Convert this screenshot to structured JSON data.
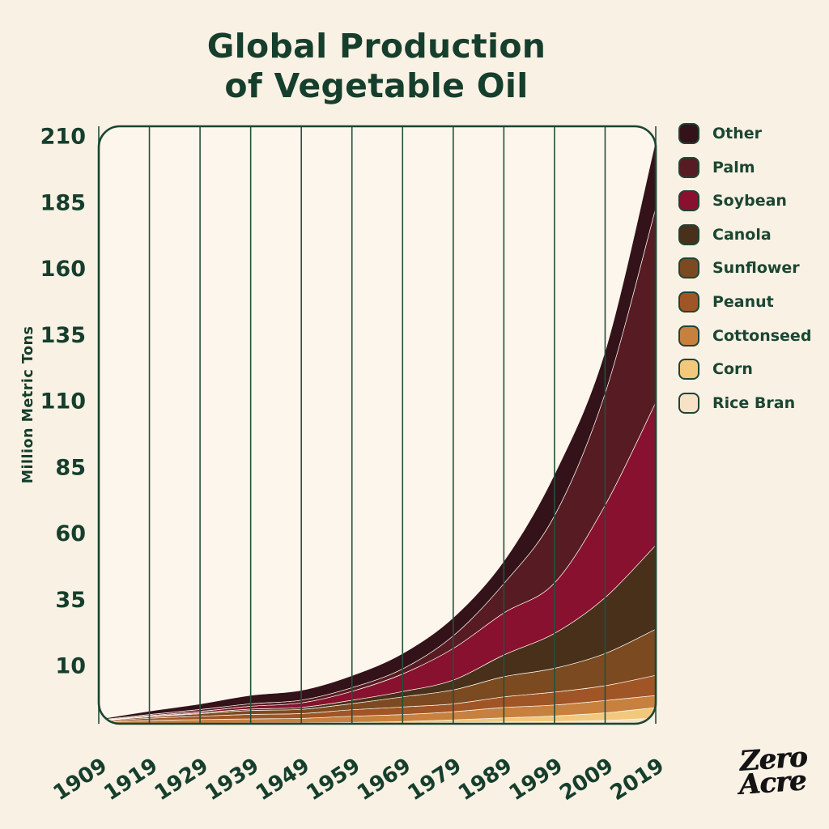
{
  "page": {
    "background": "#F9F1E4",
    "panel_background": "#FCF6EC",
    "text_green": "#163E2C",
    "grid_green": "#24503C",
    "border_green": "#1B4433",
    "logo_black": "#131313"
  },
  "title": {
    "line1": "Global Production",
    "line2": "of Vegetable Oil"
  },
  "logo": {
    "line1": "Zero",
    "line2": "Acre"
  },
  "chart_data": {
    "type": "area",
    "stacked": true,
    "title": "Global Production of Vegetable Oil",
    "ylabel": "Million Metric Tons",
    "xlabel": "",
    "ylim": [
      0,
      210
    ],
    "grid": "vertical-only",
    "legend_position": "right",
    "x": [
      1909,
      1919,
      1929,
      1939,
      1949,
      1959,
      1969,
      1979,
      1989,
      1999,
      2009,
      2019
    ],
    "y_ticks": [
      210,
      185,
      160,
      135,
      110,
      85,
      60,
      35,
      10
    ],
    "units": "Million Metric Tons",
    "series_top_to_bottom": [
      {
        "name": "Other",
        "color": "#33121A",
        "values": [
          0.3,
          1.2,
          2.0,
          3.0,
          3.5,
          4.3,
          5.5,
          6.5,
          8.0,
          14.8,
          15.0,
          24.0
        ]
      },
      {
        "name": "Palm",
        "color": "#571C23",
        "values": [
          0.2,
          0.4,
          0.7,
          0.9,
          1.0,
          1.3,
          1.8,
          4.5,
          10.5,
          24.0,
          40.0,
          69.5
        ]
      },
      {
        "name": "Soybean",
        "color": "#87112F",
        "values": [
          0.1,
          0.3,
          0.5,
          1.0,
          1.6,
          3.2,
          6.3,
          11.3,
          15.0,
          18.0,
          33.0,
          51.0
        ]
      },
      {
        "name": "Canola",
        "color": "#48301A",
        "values": [
          0.05,
          0.15,
          0.3,
          0.5,
          0.7,
          1.2,
          1.9,
          3.5,
          7.8,
          12.5,
          20.0,
          30.0
        ]
      },
      {
        "name": "Sunflower",
        "color": "#7C4A20",
        "values": [
          0.15,
          0.5,
          0.9,
          1.4,
          1.5,
          2.2,
          3.6,
          5.0,
          7.2,
          8.5,
          11.5,
          16.5
        ]
      },
      {
        "name": "Peanut",
        "color": "#A05526",
        "values": [
          0.35,
          0.8,
          1.2,
          1.6,
          1.7,
          2.3,
          2.7,
          2.8,
          3.8,
          4.6,
          5.3,
          7.2
        ]
      },
      {
        "name": "Cottonseed",
        "color": "#C8803F",
        "values": [
          0.45,
          1.0,
          1.3,
          1.5,
          1.6,
          2.2,
          2.5,
          2.9,
          3.7,
          3.9,
          4.4,
          4.3
        ]
      },
      {
        "name": "Corn",
        "color": "#F2C87C",
        "values": [
          0.03,
          0.08,
          0.1,
          0.15,
          0.2,
          0.3,
          0.5,
          1.0,
          1.5,
          2.0,
          2.7,
          3.8
        ]
      },
      {
        "name": "Rice Bran",
        "color": "#F7E2C8",
        "values": [
          0.02,
          0.07,
          0.1,
          0.1,
          0.15,
          0.2,
          0.3,
          0.4,
          0.6,
          0.8,
          1.2,
          2.0
        ]
      }
    ]
  }
}
